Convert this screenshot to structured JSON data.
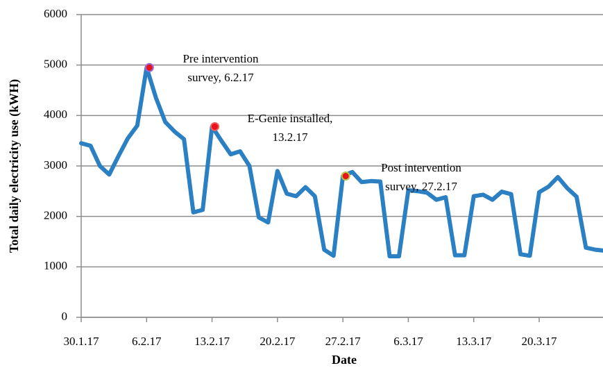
{
  "chart_data": {
    "type": "line",
    "y_label": "Total daily electricity use (kWH)",
    "x_label": "Date",
    "categories": [
      "30.1.17",
      null,
      null,
      null,
      null,
      null,
      null,
      "6.2.17",
      null,
      null,
      null,
      null,
      null,
      null,
      "13.2.17",
      null,
      null,
      null,
      null,
      null,
      null,
      "20.2.17",
      null,
      null,
      null,
      null,
      null,
      null,
      "27.2.17",
      null,
      null,
      null,
      null,
      null,
      null,
      "6.3.17",
      null,
      null,
      null,
      null,
      null,
      null,
      "13.3.17",
      null,
      null,
      null,
      null,
      null,
      null,
      "20.3.17",
      null,
      null,
      null,
      null,
      null,
      null,
      null
    ],
    "series": [
      {
        "color": "#2b7fc3",
        "values": [
          3450,
          3400,
          3000,
          2830,
          3200,
          3550,
          3800,
          4950,
          4350,
          3870,
          3680,
          3530,
          2080,
          2130,
          3780,
          3500,
          3230,
          3290,
          3000,
          1980,
          1880,
          2900,
          2450,
          2400,
          2580,
          2400,
          1340,
          1220,
          2800,
          2880,
          2680,
          2700,
          2690,
          1210,
          1210,
          2520,
          2500,
          2470,
          2330,
          2380,
          1230,
          1230,
          2400,
          2430,
          2330,
          2490,
          2440,
          1250,
          1220,
          2480,
          2590,
          2780,
          2560,
          2390,
          1380,
          1340,
          1320
        ]
      }
    ],
    "annotations": [
      {
        "index": 7,
        "lines": [
          "Pre intervention",
          "survey, 6.2.17"
        ],
        "marker_color": "#e8141b",
        "marker_edge": "#9a6ad8"
      },
      {
        "index": 14,
        "lines": [
          "E-Genie installed,",
          "13.2.17"
        ],
        "marker_color": "#e8141b",
        "marker_edge": "#f06060"
      },
      {
        "index": 28,
        "lines": [
          "Post intervention",
          "survey, 27.2.17"
        ],
        "marker_color": "#e8141b",
        "marker_edge": "#b5c642"
      }
    ],
    "ylim": [
      0,
      6000
    ],
    "yticks": [
      0,
      1000,
      2000,
      3000,
      4000,
      5000,
      6000
    ],
    "grid": true
  }
}
